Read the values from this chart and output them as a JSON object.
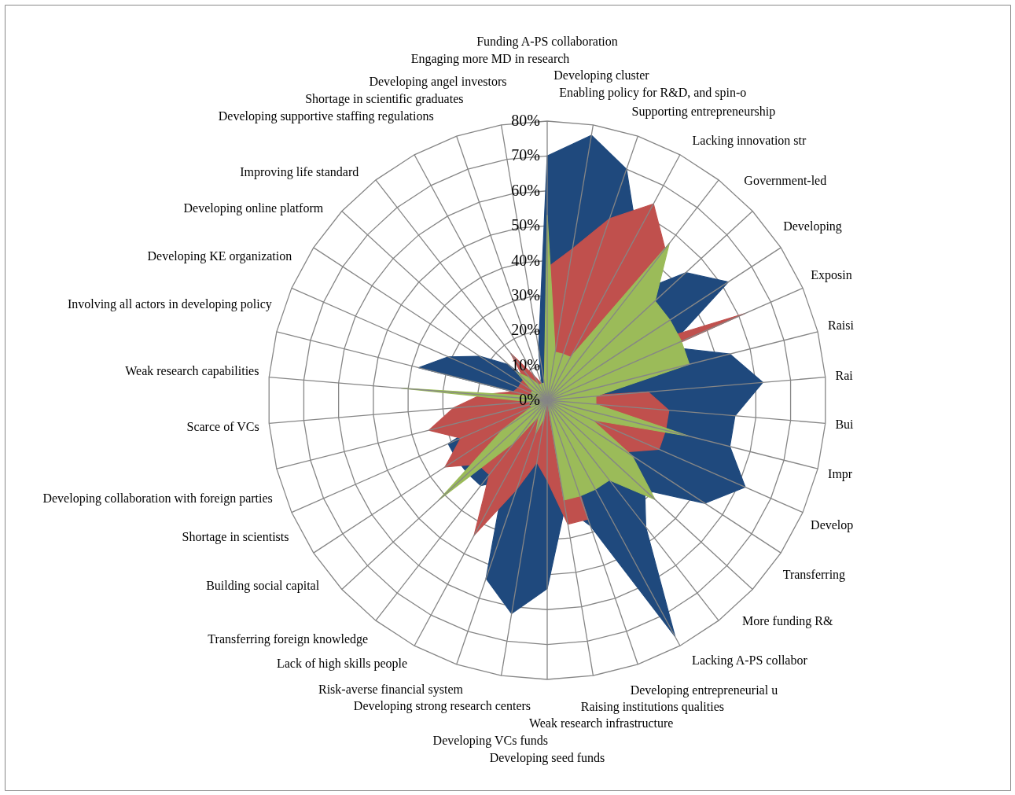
{
  "chart_data": {
    "type": "radar",
    "categories": [
      "Funding  A-PS collaboration",
      "Developing cluster",
      "Enabling policy for R&D, and spin-o",
      "Supporting entrepreneurship",
      "Lacking innovation str",
      "Government-led",
      "Developing",
      "Exposin",
      "Raisi",
      "Rai",
      "Bui",
      "Impr",
      "Develop",
      "Transferring",
      "More funding R&",
      "Lacking A-PS collabor",
      "Developing entrepreneurial u",
      "Raising institutions qualities",
      "Weak research infrastructure",
      "Developing seed funds",
      "Developing VCs funds",
      "Developing strong research centers",
      "Risk-averse financial system",
      "Lack of high skills people",
      "Transferring foreign knowledge",
      "Building social capital",
      "Shortage in scientists",
      "Developing collaboration with foreign parties",
      "Scarce of VCs",
      "Weak research capabilities",
      "Involving all actors in developing policy",
      "Developing KE organization",
      "Developing online platform",
      "Improving life standard",
      "Developing supportive staffing regulations",
      "Shortage in scientific graduates",
      "Developing angel investors",
      "Engaging more MD in research"
    ],
    "series": [
      {
        "color": "#1f497d",
        "values": [
          70,
          77,
          70,
          54,
          38,
          54,
          62,
          38,
          54,
          62,
          54,
          54,
          62,
          54,
          38,
          46,
          77,
          38,
          31,
          54,
          62,
          54,
          26,
          31,
          31,
          31,
          31,
          15,
          8,
          0,
          38,
          31,
          23,
          15,
          5,
          5,
          5,
          15
        ]
      },
      {
        "color": "#c0504d",
        "values": [
          38,
          44,
          55,
          64,
          55,
          36,
          26,
          62,
          3,
          29,
          35,
          35,
          35,
          27,
          27,
          5,
          5,
          36,
          36,
          23,
          18,
          27,
          44,
          27,
          27,
          35,
          27,
          35,
          27,
          19,
          10,
          9,
          9,
          9,
          17,
          8,
          5,
          5
        ]
      },
      {
        "color": "#9bbb59",
        "values": [
          53,
          14,
          14,
          14,
          57,
          42,
          42,
          42,
          42,
          14,
          14,
          42,
          14,
          29,
          42,
          29,
          29,
          29,
          29,
          0,
          5,
          10,
          5,
          15,
          42,
          15,
          5,
          5,
          5,
          42,
          5,
          5,
          5,
          12,
          8,
          5,
          5,
          5
        ]
      }
    ],
    "ylim": [
      0,
      80
    ],
    "yticks": [
      {
        "value": 0,
        "label": "0%"
      },
      {
        "value": 10,
        "label": "10%"
      },
      {
        "value": 20,
        "label": "20%"
      },
      {
        "value": 30,
        "label": "30%"
      },
      {
        "value": 40,
        "label": "40%"
      },
      {
        "value": 50,
        "label": "50%"
      },
      {
        "value": 60,
        "label": "60%"
      },
      {
        "value": 70,
        "label": "70%"
      },
      {
        "value": 80,
        "label": "80%"
      }
    ],
    "grid": true
  }
}
